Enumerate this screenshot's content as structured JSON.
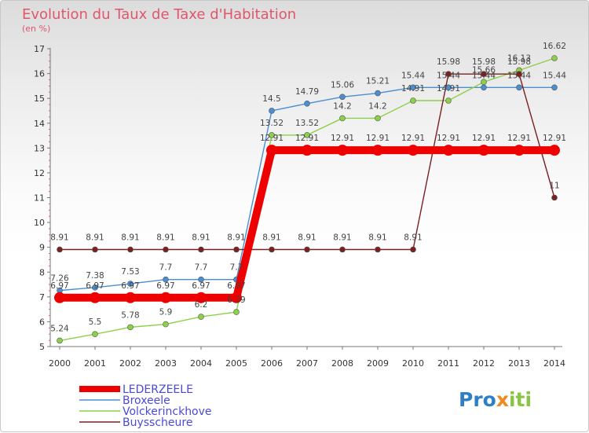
{
  "chart_data": {
    "type": "line",
    "title": "Evolution du Taux de Taxe d'Habitation",
    "subtitle": "(en %)",
    "x": [
      "2000",
      "2001",
      "2002",
      "2003",
      "2004",
      "2005",
      "2006",
      "2007",
      "2008",
      "2009",
      "2010",
      "2011",
      "2012",
      "2013",
      "2014"
    ],
    "ylim": [
      5,
      17
    ],
    "yticks": [
      "5",
      "6",
      "7",
      "8",
      "9",
      "10",
      "11",
      "12",
      "13",
      "14",
      "15",
      "16",
      "17"
    ],
    "grid": false,
    "legend_position": "bottom-left",
    "series": [
      {
        "name": "LEDERZEELE",
        "color": "#ee0000",
        "values": [
          6.97,
          6.97,
          6.97,
          6.97,
          6.97,
          6.97,
          12.91,
          12.91,
          12.91,
          12.91,
          12.91,
          12.91,
          12.91,
          12.91,
          12.91
        ],
        "labels": [
          "6.97",
          "6.97",
          "6.97",
          "6.97",
          "6.97",
          "6.97",
          "12.91",
          "12.91",
          "12.91",
          "12.91",
          "12.91",
          "12.91",
          "12.91",
          "12.91",
          "12.91"
        ]
      },
      {
        "name": "Broxeele",
        "color": "#4a8fd0",
        "values": [
          7.26,
          7.38,
          7.53,
          7.7,
          7.7,
          7.7,
          14.5,
          14.79,
          15.06,
          15.21,
          15.44,
          15.44,
          15.44,
          15.44,
          15.44
        ],
        "labels": [
          "7.26",
          "7.38",
          "7.53",
          "7.7",
          "7.7",
          "7.7",
          "14.5",
          "14.79",
          "15.06",
          "15.21",
          "15.44",
          "15.44",
          "15.44",
          "15.44",
          "15.44"
        ]
      },
      {
        "name": "Volckerinckhove",
        "color": "#8cd048",
        "values": [
          5.24,
          5.5,
          5.78,
          5.9,
          6.2,
          6.39,
          13.52,
          13.52,
          14.2,
          14.2,
          14.91,
          14.91,
          15.66,
          16.13,
          16.62
        ],
        "labels": [
          "5.24",
          "5.5",
          "5.78",
          "5.9",
          "6.2",
          "6.39",
          "13.52",
          "13.52",
          "14.2",
          "14.2",
          "14.91",
          "14.91",
          "15.66",
          "16.13",
          "16.62"
        ]
      },
      {
        "name": "Buysscheure",
        "color": "#7a2020",
        "values": [
          8.91,
          8.91,
          8.91,
          8.91,
          8.91,
          8.91,
          8.91,
          8.91,
          8.91,
          8.91,
          8.91,
          15.98,
          15.98,
          15.98,
          11
        ],
        "labels": [
          "8.91",
          "8.91",
          "8.91",
          "8.91",
          "8.91",
          "8.91",
          "8.91",
          "8.91",
          "8.91",
          "8.91",
          "8.91",
          "15.98",
          "15.98",
          "15.98",
          "11"
        ]
      }
    ]
  },
  "brand": {
    "p1": "Pro",
    "p2": "x",
    "p3": "iti"
  }
}
